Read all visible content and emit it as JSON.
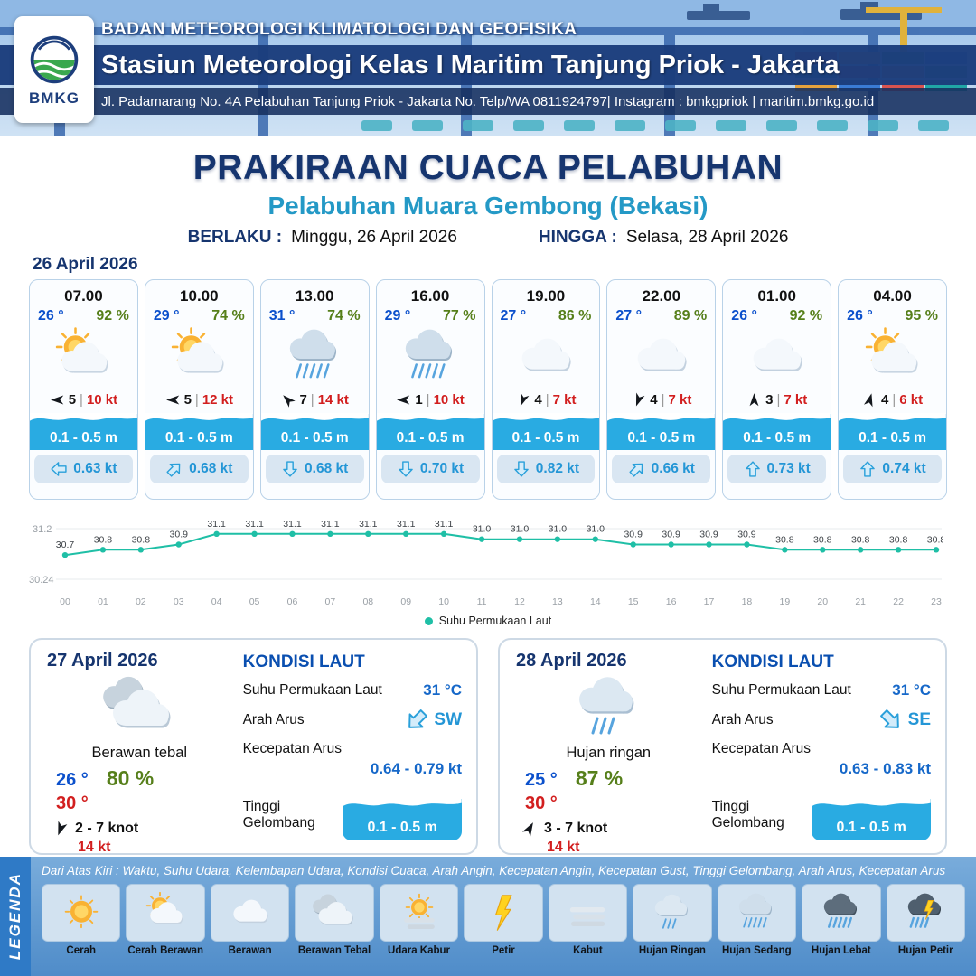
{
  "colors": {
    "navy": "#16356F",
    "teal_subtitle": "#2499C6",
    "temp_blue": "#0B50CC",
    "humidity_green": "#567F1A",
    "gust_red": "#D21F1F",
    "wave_blue": "#29ABE2",
    "current_blue": "#2496D6",
    "sst_line": "#1FBFA6"
  },
  "header": {
    "agency": "BADAN METEOROLOGI KLIMATOLOGI DAN GEOFISIKA",
    "station": "Stasiun Meteorologi Kelas I Maritim Tanjung Priok - Jakarta",
    "address": "Jl. Padamarang No. 4A Pelabuhan Tanjung Priok - Jakarta No. Telp/WA 0811924797| Instagram : bmkgpriok | maritim.bmkg.go.id",
    "logo_text": "BMKG"
  },
  "title": {
    "main": "PRAKIRAAN CUACA PELABUHAN",
    "subtitle": "Pelabuhan Muara Gembong (Bekasi)",
    "valid_label": "BERLAKU :",
    "valid_value": "Minggu, 26 April 2026",
    "until_label": "HINGGA :",
    "until_value": "Selasa, 28 April 2026"
  },
  "forecast_date": "26 April 2026",
  "hourly": [
    {
      "time": "07.00",
      "temp": "26 °",
      "humidity": "92 %",
      "icon": "cerah-berawan",
      "wind_dir_deg": 270,
      "wind_speed": "5",
      "gust": "10 kt",
      "wave_height": "0.1 - 0.5 m",
      "current_dir_deg": 270,
      "current_speed": "0.63 kt"
    },
    {
      "time": "10.00",
      "temp": "29 °",
      "humidity": "74 %",
      "icon": "cerah-berawan",
      "wind_dir_deg": 270,
      "wind_speed": "5",
      "gust": "12 kt",
      "wave_height": "0.1 - 0.5 m",
      "current_dir_deg": 45,
      "current_speed": "0.68 kt"
    },
    {
      "time": "13.00",
      "temp": "31 °",
      "humidity": "74 %",
      "icon": "hujan-sedang",
      "wind_dir_deg": 315,
      "wind_speed": "7",
      "gust": "14 kt",
      "wave_height": "0.1 - 0.5 m",
      "current_dir_deg": 180,
      "current_speed": "0.68 kt"
    },
    {
      "time": "16.00",
      "temp": "29 °",
      "humidity": "77 %",
      "icon": "hujan-sedang",
      "wind_dir_deg": 270,
      "wind_speed": "1",
      "gust": "10 kt",
      "wave_height": "0.1 - 0.5 m",
      "current_dir_deg": 180,
      "current_speed": "0.70 kt"
    },
    {
      "time": "19.00",
      "temp": "27 °",
      "humidity": "86 %",
      "icon": "berawan",
      "wind_dir_deg": 200,
      "wind_speed": "4",
      "gust": "7 kt",
      "wave_height": "0.1 - 0.5 m",
      "current_dir_deg": 180,
      "current_speed": "0.82 kt"
    },
    {
      "time": "22.00",
      "temp": "27 °",
      "humidity": "89 %",
      "icon": "berawan",
      "wind_dir_deg": 200,
      "wind_speed": "4",
      "gust": "7 kt",
      "wave_height": "0.1 - 0.5 m",
      "current_dir_deg": 45,
      "current_speed": "0.66 kt"
    },
    {
      "time": "01.00",
      "temp": "26 °",
      "humidity": "92 %",
      "icon": "berawan",
      "wind_dir_deg": 0,
      "wind_speed": "3",
      "gust": "7 kt",
      "wave_height": "0.1 - 0.5 m",
      "current_dir_deg": 0,
      "current_speed": "0.73 kt"
    },
    {
      "time": "04.00",
      "temp": "26 °",
      "humidity": "95 %",
      "icon": "cerah-berawan",
      "wind_dir_deg": 15,
      "wind_speed": "4",
      "gust": "6 kt",
      "wave_height": "0.1 - 0.5 m",
      "current_dir_deg": 0,
      "current_speed": "0.74 kt"
    }
  ],
  "chart_data": {
    "type": "line",
    "x": [
      "00",
      "01",
      "02",
      "03",
      "04",
      "05",
      "06",
      "07",
      "08",
      "09",
      "10",
      "11",
      "12",
      "13",
      "14",
      "15",
      "16",
      "17",
      "18",
      "19",
      "20",
      "21",
      "22",
      "23"
    ],
    "series": [
      {
        "name": "Suhu Permukaan Laut",
        "values": [
          30.7,
          30.8,
          30.8,
          30.9,
          31.1,
          31.1,
          31.1,
          31.1,
          31.1,
          31.1,
          31.1,
          31.0,
          31.0,
          31.0,
          31.0,
          30.9,
          30.9,
          30.9,
          30.9,
          30.8,
          30.8,
          30.8,
          30.8,
          30.8
        ]
      }
    ],
    "ylim": [
      30.24,
      31.2
    ],
    "yticks": [
      "31.2",
      "30.24"
    ],
    "line_color": "#1FBFA6",
    "grid": true,
    "legend_position": "bottom"
  },
  "daily": [
    {
      "date": "27 April 2026",
      "icon": "berawan-tebal",
      "condition": "Berawan tebal",
      "temp_min": "26 °",
      "humidity": "80 %",
      "temp_max": "30 °",
      "wind_dir_deg": 200,
      "wind": "2  - 7 knot",
      "gust": "14 kt",
      "sea": {
        "title": "KONDISI LAUT",
        "sst_label": "Suhu Permukaan Laut",
        "sst": "31 °C",
        "current_dir_label": "Arah Arus",
        "current_dir": "SW",
        "current_dir_deg": 225,
        "current_speed_label": "Kecepatan Arus",
        "current_speed": "0.64  - 0.79 kt",
        "wave_label": "Tinggi Gelombang",
        "wave": "0.1 - 0.5 m"
      }
    },
    {
      "date": "28 April 2026",
      "icon": "hujan-ringan",
      "condition": "Hujan ringan",
      "temp_min": "25 °",
      "humidity": "87 %",
      "temp_max": "30 °",
      "wind_dir_deg": 30,
      "wind": "3  - 7 knot",
      "gust": "14 kt",
      "sea": {
        "title": "KONDISI LAUT",
        "sst_label": "Suhu Permukaan Laut",
        "sst": "31 °C",
        "current_dir_label": "Arah Arus",
        "current_dir": "SE",
        "current_dir_deg": 135,
        "current_speed_label": "Kecepatan Arus",
        "current_speed": "0.63  - 0.83 kt",
        "wave_label": "Tinggi Gelombang",
        "wave": "0.1 - 0.5 m"
      }
    }
  ],
  "legend": {
    "title": "LEGENDA",
    "note": "Dari Atas Kiri : Waktu, Suhu Udara, Kelembapan Udara, Kondisi Cuaca, Arah Angin, Kecepatan Angin, Kecepatan Gust, Tinggi Gelombang, Arah Arus, Kecepatan Arus",
    "items": [
      {
        "label": "Cerah",
        "icon": "cerah"
      },
      {
        "label": "Cerah Berawan",
        "icon": "cerah-berawan"
      },
      {
        "label": "Berawan",
        "icon": "berawan"
      },
      {
        "label": "Berawan Tebal",
        "icon": "berawan-tebal"
      },
      {
        "label": "Udara Kabur",
        "icon": "udara-kabur"
      },
      {
        "label": "Petir",
        "icon": "petir"
      },
      {
        "label": "Kabut",
        "icon": "kabut"
      },
      {
        "label": "Hujan Ringan",
        "icon": "hujan-ringan"
      },
      {
        "label": "Hujan Sedang",
        "icon": "hujan-sedang"
      },
      {
        "label": "Hujan Lebat",
        "icon": "hujan-lebat"
      },
      {
        "label": "Hujan Petir",
        "icon": "hujan-petir"
      }
    ]
  }
}
